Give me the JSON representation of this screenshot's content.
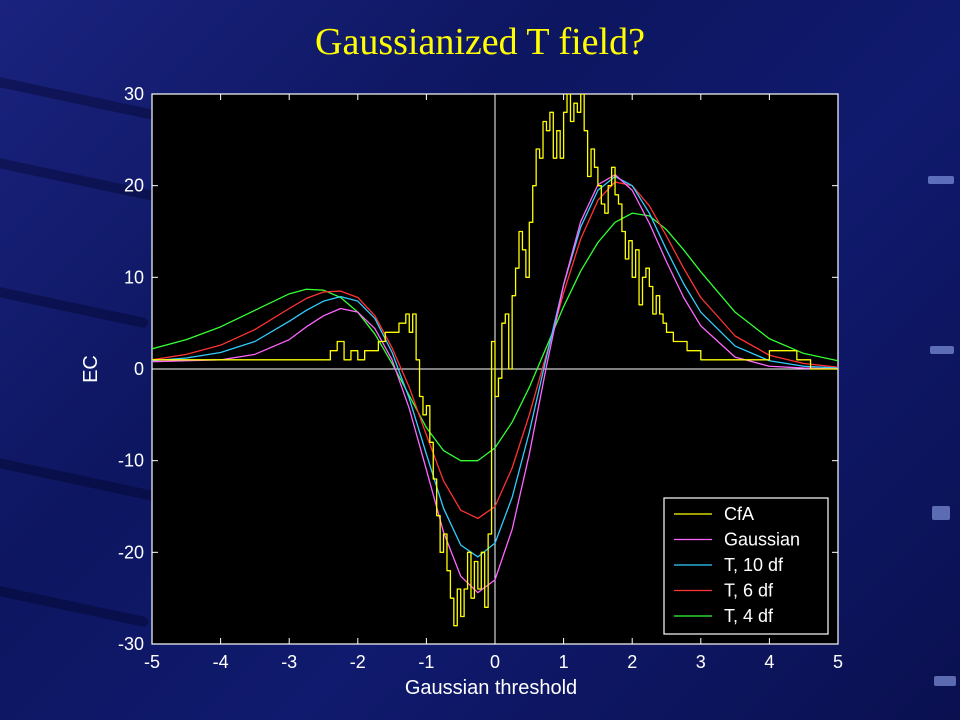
{
  "slide": {
    "title": "Gaussianized T field?"
  },
  "colors": {
    "title": "#ffff00",
    "plot_bg": "#000000",
    "axes": "#ffffff",
    "CfA": "#ffff00",
    "Gaussian": "#ff66ff",
    "T, 10 df": "#33ccff",
    "T, 6 df": "#ff3333",
    "T, 4 df": "#33ff33"
  },
  "chart_data": {
    "type": "line",
    "title": "",
    "xlabel": "Gaussian threshold",
    "ylabel": "EC",
    "xlim": [
      -5,
      5
    ],
    "ylim": [
      -30,
      30
    ],
    "xticks": [
      -5,
      -4,
      -3,
      -2,
      -1,
      0,
      1,
      2,
      3,
      4,
      5
    ],
    "yticks": [
      30,
      20,
      10,
      0,
      -10,
      -20,
      -30
    ],
    "grid": false,
    "legend_position": "bottom-right",
    "reference_lines": {
      "x": 0,
      "y": 0
    },
    "series": [
      {
        "name": "CfA",
        "x": [
          -5,
          -2.5,
          -2.4,
          -2.3,
          -2.2,
          -2.1,
          -2.0,
          -1.9,
          -1.8,
          -1.7,
          -1.6,
          -1.5,
          -1.4,
          -1.3,
          -1.25,
          -1.2,
          -1.15,
          -1.1,
          -1.05,
          -1.0,
          -0.95,
          -0.9,
          -0.85,
          -0.8,
          -0.75,
          -0.7,
          -0.65,
          -0.6,
          -0.55,
          -0.5,
          -0.45,
          -0.4,
          -0.35,
          -0.3,
          -0.25,
          -0.2,
          -0.15,
          -0.1,
          -0.05,
          0.0,
          0.05,
          0.1,
          0.15,
          0.2,
          0.25,
          0.3,
          0.35,
          0.4,
          0.45,
          0.5,
          0.55,
          0.6,
          0.65,
          0.7,
          0.75,
          0.8,
          0.85,
          0.9,
          0.95,
          1.0,
          1.05,
          1.1,
          1.15,
          1.2,
          1.25,
          1.3,
          1.35,
          1.4,
          1.45,
          1.5,
          1.55,
          1.6,
          1.65,
          1.7,
          1.75,
          1.8,
          1.85,
          1.9,
          1.95,
          2.0,
          2.05,
          2.1,
          2.15,
          2.2,
          2.25,
          2.3,
          2.35,
          2.4,
          2.45,
          2.5,
          2.6,
          2.7,
          2.8,
          2.9,
          3.0,
          3.2,
          3.4,
          3.6,
          3.8,
          4.0,
          4.2,
          4.4,
          4.6,
          5.0
        ],
        "y": [
          1,
          1,
          2,
          3,
          1,
          2,
          1,
          2,
          2,
          3,
          4,
          4,
          5,
          6,
          4,
          6,
          1,
          -3,
          -5,
          -4,
          -8,
          -12,
          -16,
          -20,
          -18,
          -22,
          -25,
          -28,
          -24,
          -27,
          -24,
          -20,
          -25,
          -21,
          -24,
          -20,
          -26,
          -18,
          3,
          -3,
          -1,
          5,
          6,
          0,
          8,
          11,
          15,
          13,
          10,
          16,
          20,
          24,
          23,
          27,
          26,
          28,
          23,
          26,
          23,
          28,
          30,
          27,
          29,
          28,
          30,
          26,
          21,
          24,
          22,
          20,
          18,
          17,
          20,
          22,
          19,
          18,
          15,
          12,
          14,
          10,
          13,
          7,
          10,
          11,
          9,
          6,
          8,
          6,
          5,
          4,
          3,
          3,
          2,
          2,
          1,
          1,
          1,
          1,
          1,
          2,
          2,
          1,
          0,
          0
        ]
      },
      {
        "name": "Gaussian",
        "x": [
          -5,
          -4.5,
          -4,
          -3.5,
          -3,
          -2.75,
          -2.5,
          -2.25,
          -2,
          -1.75,
          -1.5,
          -1.25,
          -1,
          -0.75,
          -0.5,
          -0.25,
          0,
          0.25,
          0.5,
          0.75,
          1,
          1.25,
          1.5,
          1.75,
          2,
          2.25,
          2.5,
          2.75,
          3,
          3.5,
          4,
          4.5,
          5
        ],
        "y": [
          0.8,
          0.9,
          1.0,
          1.6,
          3.2,
          4.6,
          5.8,
          6.6,
          6.2,
          4.4,
          1.0,
          -4.3,
          -11.0,
          -17.8,
          -22.6,
          -24.4,
          -23.0,
          -17.5,
          -9.3,
          0.3,
          9.2,
          16.1,
          20.1,
          21.2,
          19.5,
          15.9,
          11.7,
          7.8,
          4.7,
          1.3,
          0.3,
          0.1,
          0.0
        ]
      },
      {
        "name": "T, 10 df",
        "x": [
          -5,
          -4.5,
          -4,
          -3.5,
          -3,
          -2.75,
          -2.5,
          -2.25,
          -2,
          -1.75,
          -1.5,
          -1.25,
          -1,
          -0.75,
          -0.5,
          -0.25,
          0,
          0.25,
          0.5,
          0.75,
          1,
          1.25,
          1.5,
          1.75,
          2,
          2.25,
          2.5,
          2.75,
          3,
          3.5,
          4,
          4.5,
          5
        ],
        "y": [
          0.9,
          1.2,
          1.8,
          3.0,
          5.2,
          6.4,
          7.4,
          7.9,
          7.4,
          5.5,
          1.8,
          -3.2,
          -9.3,
          -15.2,
          -19.2,
          -20.5,
          -19.0,
          -14.0,
          -6.9,
          1.3,
          9.2,
          15.5,
          19.5,
          21.0,
          20.0,
          17.0,
          13.0,
          9.3,
          6.2,
          2.5,
          0.9,
          0.3,
          0.1
        ]
      },
      {
        "name": "T, 6 df",
        "x": [
          -5,
          -4.5,
          -4,
          -3.5,
          -3,
          -2.75,
          -2.5,
          -2.25,
          -2,
          -1.75,
          -1.5,
          -1.25,
          -1,
          -0.75,
          -0.5,
          -0.25,
          0,
          0.25,
          0.5,
          0.75,
          1,
          1.25,
          1.5,
          1.75,
          2,
          2.25,
          2.5,
          2.75,
          3,
          3.5,
          4,
          4.5,
          5
        ],
        "y": [
          1.0,
          1.6,
          2.6,
          4.3,
          6.6,
          7.7,
          8.4,
          8.5,
          7.8,
          5.8,
          2.3,
          -2.0,
          -7.2,
          -12.2,
          -15.4,
          -16.3,
          -15.0,
          -10.8,
          -5.0,
          1.6,
          8.3,
          14.2,
          18.4,
          20.4,
          20.0,
          17.8,
          14.5,
          11.0,
          7.8,
          3.6,
          1.5,
          0.6,
          0.2
        ]
      },
      {
        "name": "T, 4 df",
        "x": [
          -5,
          -4.5,
          -4,
          -3.5,
          -3,
          -2.75,
          -2.5,
          -2.25,
          -2,
          -1.75,
          -1.5,
          -1.25,
          -1,
          -0.75,
          -0.5,
          -0.25,
          0,
          0.25,
          0.5,
          0.75,
          1,
          1.25,
          1.5,
          1.75,
          2,
          2.25,
          2.5,
          2.75,
          3,
          3.5,
          4,
          4.5,
          5
        ],
        "y": [
          2.2,
          3.2,
          4.6,
          6.4,
          8.2,
          8.7,
          8.6,
          7.8,
          6.2,
          3.8,
          0.6,
          -2.9,
          -6.4,
          -8.9,
          -10.0,
          -10.0,
          -8.6,
          -5.8,
          -2.0,
          2.4,
          6.8,
          10.7,
          13.8,
          16.0,
          17.0,
          16.7,
          15.2,
          13.0,
          10.6,
          6.2,
          3.3,
          1.7,
          0.9
        ]
      }
    ]
  }
}
